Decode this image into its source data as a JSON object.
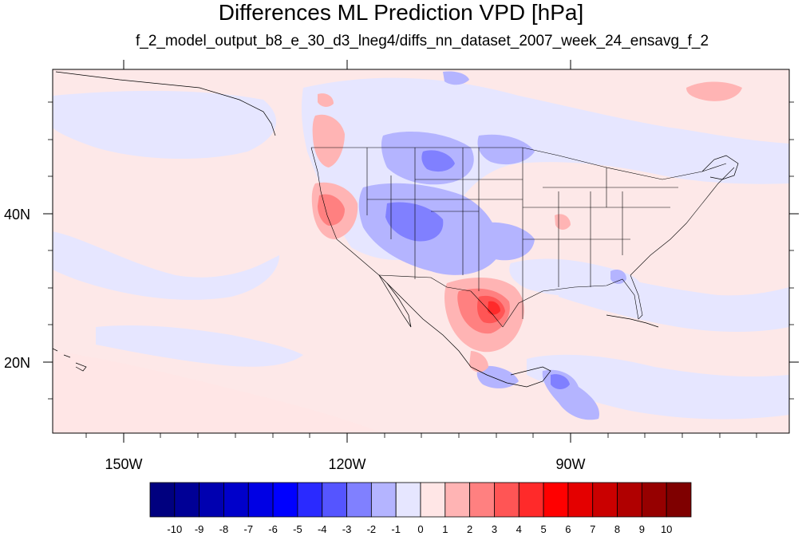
{
  "title": "Differences ML Prediction VPD [hPa]",
  "subtitle": "f_2_model_output_b8_e_30_d3_lneg4/diffs_nn_dataset_2007_week_24_ensavg_f_2",
  "map": {
    "lon_range": [
      -160.5,
      -60
    ],
    "lat_range": [
      10.5,
      57.5
    ],
    "lon_ticks": [
      {
        "value": -150,
        "label": "150W"
      },
      {
        "value": -120,
        "label": "120W"
      },
      {
        "value": -90,
        "label": "90W"
      }
    ],
    "lat_ticks": [
      {
        "value": 40,
        "label": "40N"
      },
      {
        "value": 20,
        "label": "20N"
      }
    ],
    "background_color": "#fde8e8"
  },
  "colorbar": {
    "labels": [
      "-10",
      "-9",
      "-8",
      "-7",
      "-6",
      "-5",
      "-4",
      "-3",
      "-2",
      "-1",
      "0",
      "1",
      "2",
      "3",
      "4",
      "5",
      "6",
      "7",
      "8",
      "9",
      "10"
    ],
    "colors": [
      "#00007f",
      "#000096",
      "#0000b0",
      "#0000ca",
      "#0000e4",
      "#0000ff",
      "#2a2aff",
      "#5555ff",
      "#8080ff",
      "#b4b4ff",
      "#e6e6ff",
      "#ffe6e6",
      "#ffb4b4",
      "#ff8080",
      "#ff5555",
      "#ff2a2a",
      "#ff0000",
      "#e40000",
      "#ca0000",
      "#b00000",
      "#960000",
      "#7f0000"
    ]
  }
}
